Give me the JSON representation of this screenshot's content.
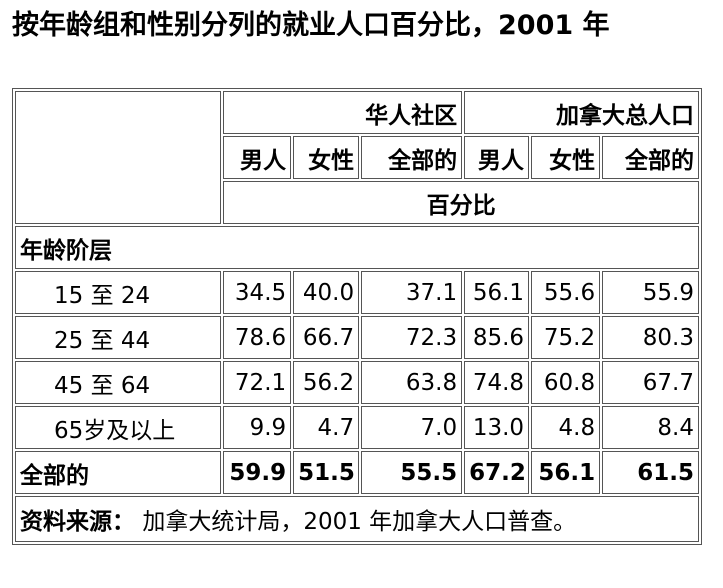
{
  "title": "按年龄组和性别分列的就业人口百分比，2001 年",
  "table": {
    "group_headers": [
      "华人社区",
      "加拿大总人口"
    ],
    "sub_headers": [
      "男人",
      "女性",
      "全部的",
      "男人",
      "女性",
      "全部的"
    ],
    "unit": "百分比",
    "section": "年龄阶层",
    "rows": [
      {
        "label": "15 至 24",
        "values": [
          "34.5",
          "40.0",
          "37.1",
          "56.1",
          "55.6",
          "55.9"
        ]
      },
      {
        "label": "25 至 44",
        "values": [
          "78.6",
          "66.7",
          "72.3",
          "85.6",
          "75.2",
          "80.3"
        ]
      },
      {
        "label": "45 至 64",
        "values": [
          "72.1",
          "56.2",
          "63.8",
          "74.8",
          "60.8",
          "67.7"
        ]
      },
      {
        "label": "65岁及以上",
        "values": [
          "9.9",
          "4.7",
          "7.0",
          "13.0",
          "4.8",
          "8.4"
        ]
      }
    ],
    "total": {
      "label": "全部的",
      "values": [
        "59.9",
        "51.5",
        "55.5",
        "67.2",
        "56.1",
        "61.5"
      ]
    }
  },
  "source": {
    "label": "资料来源：",
    "text": "加拿大统计局，2001 年加拿大人口普查。"
  }
}
